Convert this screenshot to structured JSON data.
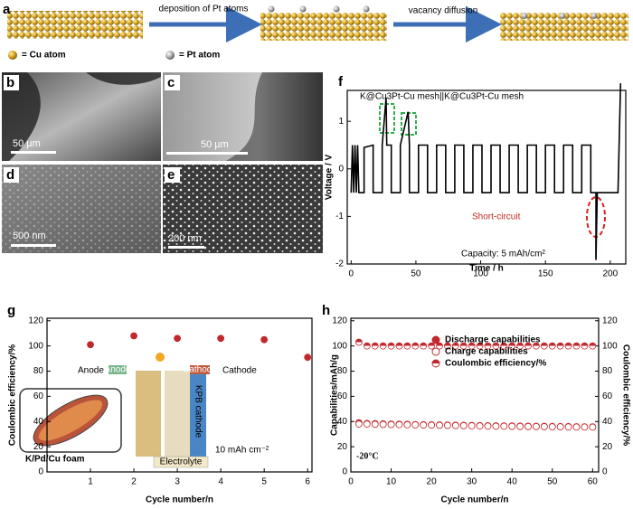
{
  "panel_labels": [
    "a",
    "b",
    "c",
    "d",
    "e",
    "f",
    "g",
    "h"
  ],
  "schematic": {
    "steps": [
      "deposition of Pt atoms",
      "vacancy diffusion"
    ],
    "legend": [
      "= Cu atom",
      "= Pt atom"
    ]
  },
  "sem": {
    "scale_bars": [
      "50 µm",
      "50 µm",
      "500 nm",
      "200 nm"
    ]
  },
  "chart_data": [
    {
      "type": "line",
      "xlabel": "Time / h",
      "ylabel": "Voltage / V",
      "xlim": [
        -3,
        212
      ],
      "ylim": [
        -2,
        1.65
      ],
      "xticks": [
        0,
        50,
        100,
        150,
        200
      ],
      "yticks": [
        -2,
        -1,
        0,
        1
      ],
      "annotations": [
        "Short-circuit",
        "Capacity: 5 mAh/cm²"
      ],
      "x": [
        0,
        1,
        2,
        3,
        4,
        5,
        6,
        10,
        10,
        17,
        17,
        24,
        24,
        27,
        27.5,
        31,
        31,
        38,
        38,
        44,
        45,
        45,
        52,
        52,
        59,
        59,
        66,
        66,
        73,
        73,
        80,
        80,
        87,
        87,
        94,
        94,
        101,
        101,
        108,
        108,
        115,
        115,
        122,
        122,
        129,
        129,
        136,
        136,
        143,
        143,
        150,
        150,
        157,
        157,
        164,
        164,
        171,
        171,
        178,
        178,
        185,
        185,
        189,
        189,
        190,
        206,
        208
      ],
      "series": [
        {
          "name": "K@Cu3Pt-Cu mesh||K@Cu3Pt-Cu mesh",
          "color": "#000000",
          "values": [
            -0.5,
            0.5,
            -0.5,
            0.5,
            -0.5,
            0.5,
            -0.5,
            -0.5,
            0.45,
            0.5,
            -0.5,
            -0.5,
            0.5,
            1.5,
            0.5,
            0.5,
            -0.5,
            -0.5,
            0.5,
            1.2,
            0.5,
            -0.5,
            -0.5,
            0.5,
            0.5,
            -0.5,
            -0.5,
            0.5,
            0.5,
            -0.5,
            -0.5,
            0.5,
            0.5,
            -0.5,
            -0.5,
            0.5,
            0.5,
            -0.5,
            -0.5,
            0.5,
            0.5,
            -0.5,
            -0.5,
            0.5,
            0.5,
            -0.5,
            -0.5,
            0.5,
            0.5,
            -0.5,
            -0.5,
            0.5,
            0.5,
            -0.5,
            -0.5,
            0.5,
            0.5,
            -0.5,
            -0.5,
            0.5,
            0.5,
            -0.5,
            -0.5,
            -1.9,
            -0.5,
            -0.5,
            1.8
          ]
        }
      ]
    },
    {
      "type": "scatter",
      "xlabel": "Cycle number/n",
      "ylabel": "Coulombic efficiency/%",
      "xlim": [
        0,
        6.1
      ],
      "ylim": [
        0,
        122
      ],
      "xticks": [
        1,
        2,
        3,
        4,
        5,
        6
      ],
      "yticks": [
        0,
        20,
        40,
        60,
        80,
        100,
        120
      ],
      "x": [
        1,
        2,
        3,
        4,
        5,
        6
      ],
      "values": [
        101,
        108,
        106,
        106,
        105,
        91
      ],
      "color": "#c0282d",
      "marker": "filled",
      "inset": {
        "labels": [
          "Anode",
          "Anode",
          "Cathode",
          "Cathode",
          "K/Pd/Cu foam",
          "Electrolyte",
          "KPB cathode"
        ],
        "annotation": "10 mAh cm⁻²"
      }
    },
    {
      "type": "scatter",
      "xlabel": "Cycle number/n",
      "ylabel": "Capabilities/mAh/g",
      "y2label": "Coulombic efficiency/%",
      "xlim": [
        0,
        61.5
      ],
      "ylim": [
        0,
        122
      ],
      "y2lim": [
        0,
        122
      ],
      "xticks": [
        0,
        10,
        20,
        30,
        40,
        50,
        60
      ],
      "yticks": [
        0,
        20,
        40,
        60,
        80,
        100,
        120
      ],
      "y2ticks": [
        0,
        20,
        40,
        60,
        80,
        100,
        120
      ],
      "annotation": "-20°C",
      "legend": "upper right",
      "x": [
        2,
        4,
        6,
        8,
        10,
        12,
        14,
        16,
        18,
        20,
        22,
        24,
        26,
        28,
        30,
        32,
        34,
        36,
        38,
        40,
        42,
        44,
        46,
        48,
        50,
        52,
        54,
        56,
        58,
        60
      ],
      "series": [
        {
          "name": "Discharge capabilities",
          "color": "#c0282d",
          "marker": "filled",
          "values": [
            39,
            38.5,
            38.4,
            38.2,
            38,
            37.9,
            37.8,
            37.6,
            37.5,
            37.4,
            37.3,
            37.2,
            37.1,
            37,
            36.9,
            36.8,
            36.7,
            36.6,
            36.5,
            36.5,
            36.4,
            36.3,
            36.2,
            36.2,
            36.1,
            36,
            36,
            35.9,
            35.8,
            35.8
          ]
        },
        {
          "name": "Charge capabilities",
          "color": "#c0282d",
          "marker": "open",
          "values": [
            38,
            38,
            37.8,
            37.7,
            37.6,
            37.5,
            37.4,
            37.3,
            37.2,
            37.1,
            37,
            36.9,
            36.8,
            36.7,
            36.6,
            36.5,
            36.4,
            36.3,
            36.3,
            36.2,
            36.1,
            36,
            36,
            35.9,
            35.8,
            35.8,
            35.7,
            35.6,
            35.6,
            35.5
          ]
        },
        {
          "name": "Coulombic efficiency/%",
          "color": "#c0282d",
          "marker": "half",
          "axis": "y2",
          "values": [
            103,
            100,
            100,
            100,
            100,
            100,
            100,
            100,
            100,
            100,
            100,
            100,
            100,
            100,
            100,
            100,
            100,
            100,
            100,
            100,
            100,
            100,
            100,
            100,
            100,
            100,
            100,
            100,
            100,
            100
          ]
        }
      ]
    }
  ]
}
